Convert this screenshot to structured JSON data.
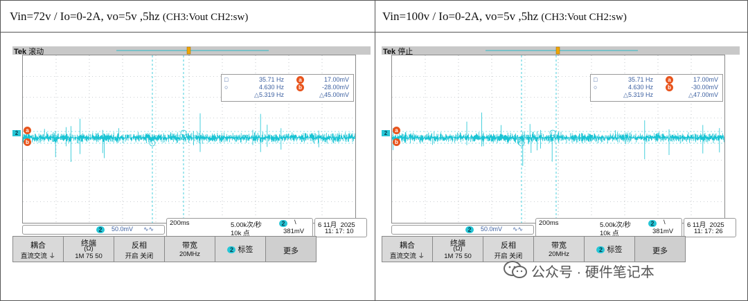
{
  "panels": [
    {
      "caption_main": "Vin=72v    / Io=0-2A, vo=5v ,5hz ",
      "caption_small": "(CH3:Vout CH2:sw)",
      "brand": "Tek",
      "mode": "滚动",
      "meas": {
        "r1_icon": "□",
        "r1_freq": "35.71 Hz",
        "r1_marker": "a",
        "r1_val": "17.00mV",
        "r2_icon": "○",
        "r2_freq": "4.630 Hz",
        "r2_marker": "b",
        "r2_val": "-28.00mV",
        "r3_freq": "△5.319 Hz",
        "r3_val": "△45.00mV"
      },
      "ch_marker_a": "a",
      "ch_marker_b": "b",
      "ch_num": "2",
      "ch_scale": "50.0mV",
      "bw_icon": "∿∿",
      "timebase": "200ms",
      "samplerate": "5.00k次/秒",
      "points": "10k 点",
      "trig_ch": "2",
      "trig_slope": "\\",
      "trig_level": "381mV",
      "date": "6 11月  2025",
      "time": "11: 17: 10",
      "keys": {
        "coupling_title": "耦合",
        "coupling_sub": "直流交流 ⏚",
        "term_title": "终端",
        "term_unit": "(Ω)",
        "term_sub": "1M  75   50",
        "invert_title": "反相",
        "invert_sub": "开启  关闭",
        "bw_title": "带宽",
        "bw_sub": "20MHz",
        "label_num": "2",
        "label_title": "标签",
        "more_title": "更多"
      }
    },
    {
      "caption_main": "Vin=100v    / Io=0-2A, vo=5v ,5hz ",
      "caption_small": "(CH3:Vout CH2:sw)",
      "brand": "Tek",
      "mode": "停止",
      "meas": {
        "r1_icon": "□",
        "r1_freq": "35.71 Hz",
        "r1_marker": "a",
        "r1_val": "17.00mV",
        "r2_icon": "○",
        "r2_freq": "4.630 Hz",
        "r2_marker": "b",
        "r2_val": "-30.00mV",
        "r3_freq": "△5.319 Hz",
        "r3_val": "△47.00mV"
      },
      "ch_marker_a": "a",
      "ch_marker_b": "b",
      "ch_num": "2",
      "ch_scale": "50.0mV",
      "bw_icon": "∿∿",
      "timebase": "200ms",
      "samplerate": "5.00k次/秒",
      "points": "10k 点",
      "trig_ch": "2",
      "trig_slope": "\\",
      "trig_level": "381mV",
      "date": "6 11月  2025",
      "time": "11: 17: 26",
      "keys": {
        "coupling_title": "耦合",
        "coupling_sub": "直流交流 ⏚",
        "term_title": "终端",
        "term_unit": "(Ω)",
        "term_sub": "1M  75   50",
        "invert_title": "反相",
        "invert_sub": "开启  关闭",
        "bw_title": "带宽",
        "bw_sub": "20MHz",
        "label_num": "2",
        "label_title": "标签",
        "more_title": "更多"
      }
    }
  ],
  "watermark": "公众号 · 硬件笔记本",
  "colors": {
    "trace": "#19c4d4",
    "marker": "#e8541c",
    "grid": "#9aa0a6",
    "accent_blue": "#3b5fa0"
  }
}
